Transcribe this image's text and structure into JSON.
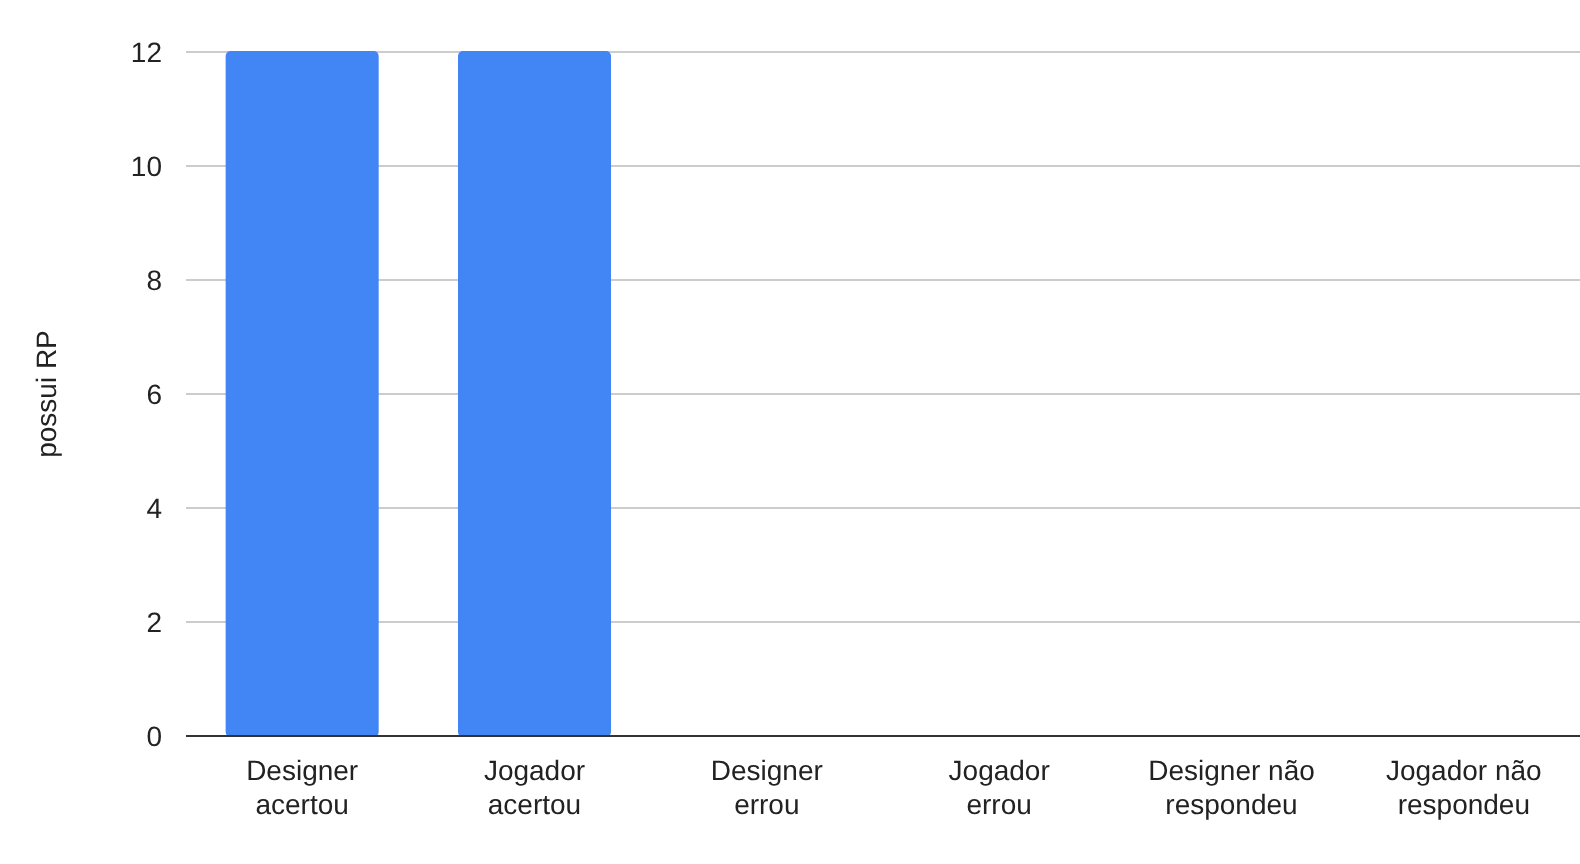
{
  "chart_data": {
    "type": "bar",
    "ylabel": "possui RP",
    "categories": [
      "Designer acertou",
      "Jogador acertou",
      "Designer errou",
      "Jogador errou",
      "Designer não respondeu",
      "Jogador não respondeu"
    ],
    "values": [
      12,
      12,
      0,
      0,
      0,
      0
    ],
    "color": "#4285f4",
    "ylim": [
      0,
      12
    ],
    "yticks": [
      0,
      2,
      4,
      6,
      8,
      10,
      12
    ],
    "grid": "y"
  }
}
